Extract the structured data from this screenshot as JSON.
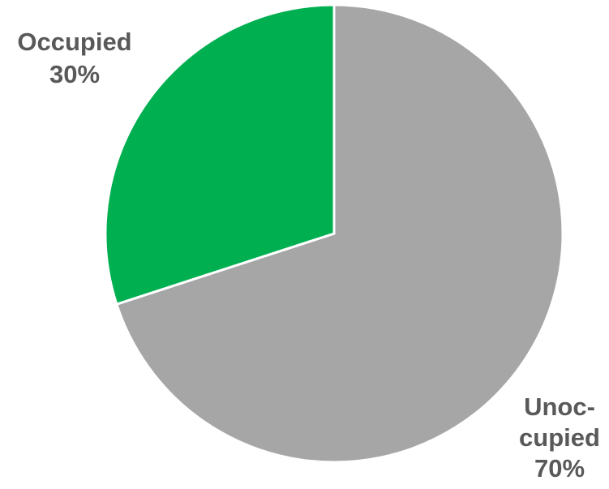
{
  "chart_data": {
    "type": "pie",
    "categories": [
      "Unoccupied",
      "Occupied"
    ],
    "values": [
      70,
      30
    ],
    "colors": [
      "#a6a6a6",
      "#00b050"
    ],
    "labels": [
      {
        "category": "Unoccupied",
        "lines": [
          "Unoc-",
          "cupied",
          "70%"
        ]
      },
      {
        "category": "Occupied",
        "lines": [
          "Occupied",
          "30%"
        ]
      }
    ],
    "start_angle_deg": 0,
    "direction": "clockwise",
    "legend": "none"
  }
}
